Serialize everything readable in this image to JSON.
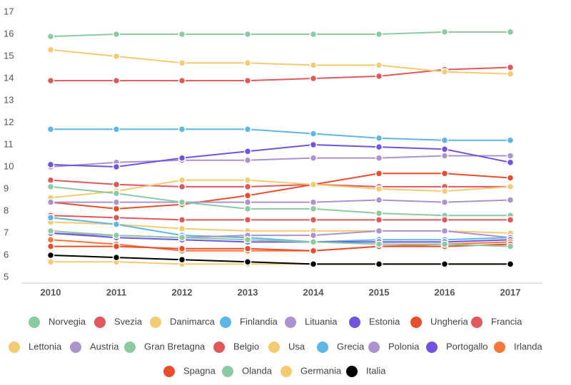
{
  "chart_data": {
    "type": "line",
    "x": [
      2010,
      2011,
      2012,
      2013,
      2014,
      2015,
      2016,
      2017
    ],
    "xticks": [
      2010,
      2011,
      2012,
      2013,
      2014,
      2015,
      2016,
      2017
    ],
    "ylim": [
      5,
      17
    ],
    "yticks": [
      5,
      6,
      7,
      8,
      9,
      10,
      11,
      12,
      13,
      14,
      15,
      16,
      17
    ],
    "series": [
      {
        "name": "Norvegia",
        "color": "#8ccaa2",
        "values": [
          15.9,
          16,
          16,
          16,
          16,
          16,
          16.1,
          16.1
        ]
      },
      {
        "name": "Svezia",
        "color": "#e0585c",
        "values": [
          13.9,
          13.9,
          13.9,
          13.9,
          14.0,
          14.1,
          14.4,
          14.5
        ]
      },
      {
        "name": "Danimarca",
        "color": "#f4cb72",
        "values": [
          15.3,
          15.0,
          14.7,
          14.7,
          14.6,
          14.6,
          14.3,
          14.2
        ]
      },
      {
        "name": "Finlandia",
        "color": "#5db6e6",
        "values": [
          11.7,
          11.7,
          11.7,
          11.7,
          11.5,
          11.3,
          11.2,
          11.2
        ]
      },
      {
        "name": "Lituania",
        "color": "#ab93cd",
        "values": [
          10.0,
          10.2,
          10.3,
          10.3,
          10.4,
          10.4,
          10.5,
          10.5
        ]
      },
      {
        "name": "Estonia",
        "color": "#7054df",
        "values": [
          10.1,
          10.0,
          10.4,
          10.7,
          11.0,
          10.9,
          10.8,
          10.2
        ]
      },
      {
        "name": "Ungheria",
        "color": "#e84e2c",
        "values": [
          8.4,
          8.1,
          8.3,
          8.7,
          9.2,
          9.7,
          9.7,
          9.5
        ]
      },
      {
        "name": "Francia",
        "color": "#e0585c",
        "values": [
          9.4,
          9.2,
          9.1,
          9.1,
          9.2,
          9.1,
          9.1,
          9.1
        ]
      },
      {
        "name": "Lettonia",
        "color": "#f4cb72",
        "values": [
          8.6,
          8.9,
          9.4,
          9.4,
          9.2,
          9.0,
          8.9,
          9.1
        ]
      },
      {
        "name": "Austria",
        "color": "#ab93cd",
        "values": [
          8.4,
          8.4,
          8.4,
          8.4,
          8.4,
          8.5,
          8.4,
          8.5
        ]
      },
      {
        "name": "Gran Bretagna",
        "color": "#8ccaa2",
        "values": [
          9.1,
          8.8,
          8.4,
          8.1,
          8.1,
          7.9,
          7.8,
          7.8
        ]
      },
      {
        "name": "Belgio",
        "color": "#e0585c",
        "values": [
          7.8,
          7.7,
          7.6,
          7.6,
          7.6,
          7.6,
          7.6,
          7.6
        ]
      },
      {
        "name": "Usa",
        "color": "#f4cb72",
        "values": [
          7.5,
          7.4,
          7.2,
          7.1,
          7.1,
          7.1,
          7.1,
          7.0
        ]
      },
      {
        "name": "Grecia",
        "color": "#5db6e6",
        "values": [
          7.7,
          7.4,
          6.9,
          6.8,
          6.6,
          6.7,
          6.7,
          6.8
        ]
      },
      {
        "name": "Polonia",
        "color": "#ab93cd",
        "values": [
          7.0,
          6.9,
          6.8,
          6.9,
          6.9,
          7.1,
          7.1,
          6.8
        ]
      },
      {
        "name": "Portogallo",
        "color": "#7054df",
        "values": [
          7.0,
          6.8,
          6.7,
          6.6,
          6.6,
          6.6,
          6.6,
          6.7
        ]
      },
      {
        "name": "Irlanda",
        "color": "#f5773a",
        "values": [
          6.7,
          6.5,
          6.2,
          6.2,
          6.2,
          6.4,
          6.5,
          6.6
        ]
      },
      {
        "name": "Spagna",
        "color": "#e84e2c",
        "values": [
          6.4,
          6.4,
          6.3,
          6.3,
          6.2,
          6.4,
          6.4,
          6.5
        ]
      },
      {
        "name": "Olanda",
        "color": "#8ccaa2",
        "values": [
          7.1,
          6.9,
          6.8,
          6.7,
          6.6,
          6.5,
          6.5,
          6.4
        ]
      },
      {
        "name": "Germania",
        "color": "#f4cb72",
        "values": [
          5.7,
          5.7,
          5.6,
          5.6,
          5.6,
          5.6,
          5.6,
          5.6
        ]
      },
      {
        "name": "Italia",
        "color": "#000000",
        "values": [
          6.0,
          5.9,
          5.8,
          5.7,
          5.6,
          5.6,
          5.6,
          5.6
        ]
      }
    ]
  }
}
